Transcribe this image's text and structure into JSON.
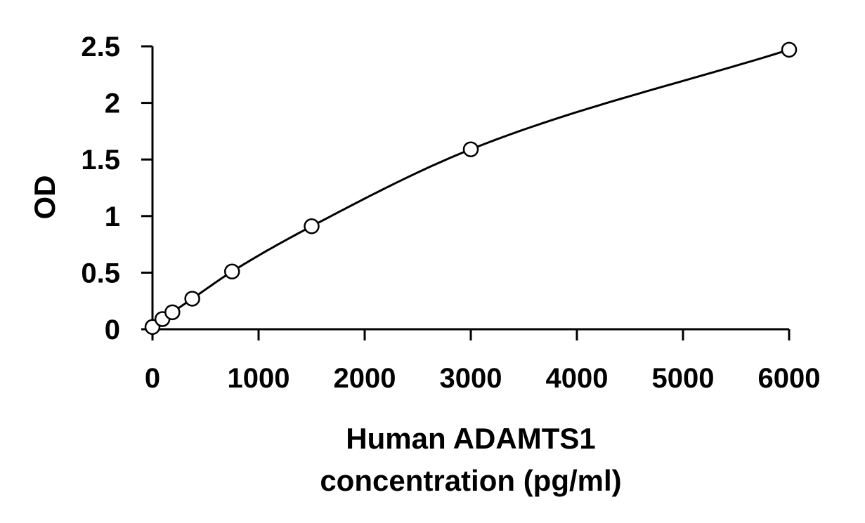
{
  "chart_data": {
    "type": "scatter",
    "title": "",
    "xlabel_lines": [
      "Human ADAMTS1",
      "concentration (pg/ml)"
    ],
    "ylabel": "OD",
    "xlim": [
      0,
      6000
    ],
    "ylim": [
      0,
      2.5
    ],
    "x_ticks": [
      0,
      1000,
      2000,
      3000,
      4000,
      5000,
      6000
    ],
    "x_tick_labels": [
      "0",
      "1000",
      "2000",
      "3000",
      "4000",
      "5000",
      "6000"
    ],
    "y_ticks": [
      0,
      0.5,
      1,
      1.5,
      2,
      2.5
    ],
    "y_tick_labels": [
      "0",
      "0.5",
      "1",
      "1.5",
      "2",
      "2.5"
    ],
    "grid": false,
    "legend": "none",
    "series": [
      {
        "marker": "open-circle",
        "line": "smooth-fit",
        "x": [
          0,
          93.75,
          187.5,
          375,
          750,
          1500,
          3000,
          6000
        ],
        "y": [
          0.02,
          0.09,
          0.15,
          0.27,
          0.51,
          0.91,
          1.59,
          2.47
        ]
      }
    ],
    "colors": {
      "line": "#000000",
      "marker_stroke": "#000000",
      "marker_fill": "#ffffff",
      "axis": "#000000"
    }
  }
}
